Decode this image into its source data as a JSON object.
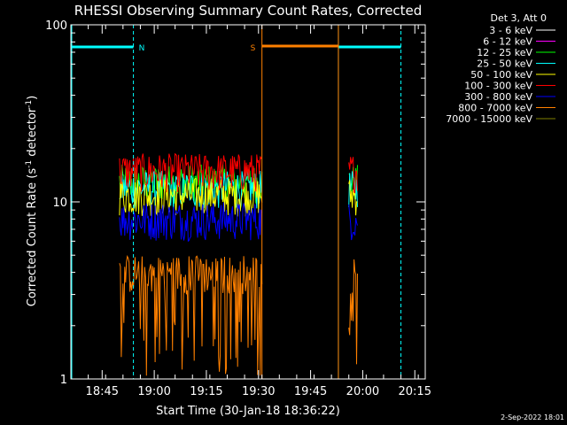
{
  "chart_data": {
    "type": "line",
    "title": "RHESSI Observing Summary Count Rates, Corrected",
    "xlabel": "Start Time (30-Jan-18 18:36:22)",
    "ylabel_main": "Corrected Count Rate (s",
    "ylabel_sup1": "-1",
    "ylabel_mid": " detector",
    "ylabel_sup2": "-1",
    "ylabel_end": ")",
    "date_stamp": "2-Sep-2022 18:01",
    "y_scale": "log",
    "ylim": [
      1,
      100
    ],
    "y_ticks": [
      {
        "value": 1,
        "label": "1"
      },
      {
        "value": 10,
        "label": "10"
      },
      {
        "value": 100,
        "label": "100"
      }
    ],
    "xlim_minutes_after_1836": [
      0,
      102
    ],
    "x_ticks": [
      {
        "min": 9,
        "label": "18:45"
      },
      {
        "min": 24,
        "label": "19:00"
      },
      {
        "min": 39,
        "label": "19:15"
      },
      {
        "min": 54,
        "label": "19:30"
      },
      {
        "min": 69,
        "label": "19:45"
      },
      {
        "min": 84,
        "label": "20:00"
      },
      {
        "min": 99,
        "label": "20:15"
      }
    ],
    "legend_header": "Det 3, Att 0",
    "legend_placement": "right",
    "series": [
      {
        "name": "3 - 6 keV",
        "color": "#ffffff",
        "level": null
      },
      {
        "name": "6 - 12 keV",
        "color": "#ff00ff",
        "level": null
      },
      {
        "name": "12 - 25 keV",
        "color": "#00ff00",
        "level": 13
      },
      {
        "name": "25 - 50 keV",
        "color": "#00ffff",
        "level": 12
      },
      {
        "name": "50 - 100 keV",
        "color": "#ffff00",
        "level": 11
      },
      {
        "name": "100 - 300 keV",
        "color": "#ff0000",
        "level": 15
      },
      {
        "name": "300 - 800 keV",
        "color": "#0000ff",
        "level": 8
      },
      {
        "name": "800 - 7000 keV",
        "color": "#ff8000",
        "level": 4
      },
      {
        "name": "7000 - 15000 keV",
        "color": "#808000",
        "level": null
      }
    ],
    "segments_minutes": [
      [
        14,
        55
      ],
      [
        80,
        82.5
      ]
    ],
    "annotations": [
      {
        "label": "N",
        "color": "#00ffff",
        "start_min": 0,
        "end_min": 18,
        "start2_min": 77,
        "end2_min": 95
      },
      {
        "label": "S",
        "color": "#ff8000",
        "start_min": 55,
        "end_min": 77
      }
    ],
    "flag_value": 75
  }
}
